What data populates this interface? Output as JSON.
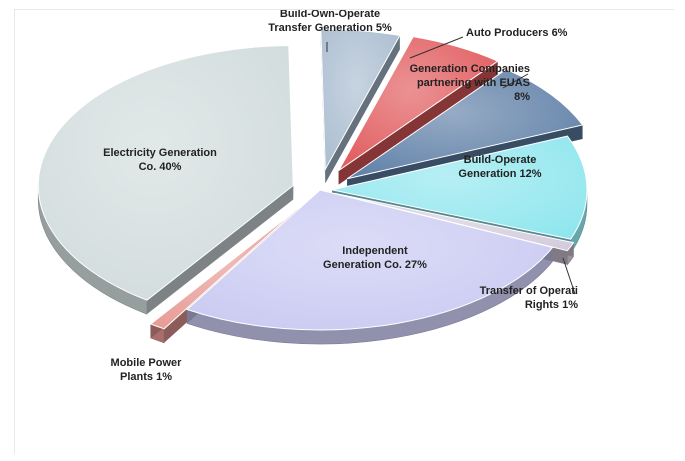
{
  "chart_data": {
    "type": "pie",
    "title": "",
    "slices": [
      {
        "key": "bot",
        "label_lines": [
          "Build-Own-Operate",
          "Transfer Generation 5%"
        ],
        "value": 5,
        "color": "#a9bccf"
      },
      {
        "key": "auto",
        "label_lines": [
          "Auto Producers 6%"
        ],
        "value": 6,
        "color": "#e0585a"
      },
      {
        "key": "gencos",
        "label_lines": [
          "Generation Companies",
          "partnering with EUAS",
          "8%"
        ],
        "value": 8,
        "color": "#5d7ea6"
      },
      {
        "key": "bo",
        "label_lines": [
          "Build-Operate",
          "Generation 12%"
        ],
        "value": 12,
        "color": "#8fe6ee"
      },
      {
        "key": "tor",
        "label_lines": [
          "Transfer of Operati",
          "Rights 1%"
        ],
        "value": 1,
        "color": "#d3ccdc"
      },
      {
        "key": "ipp",
        "label_lines": [
          "Independent",
          "Generation Co.  27%"
        ],
        "value": 27,
        "color": "#c9c9f2"
      },
      {
        "key": "mobile",
        "label_lines": [
          "Mobile Power",
          "Plants 1%"
        ],
        "value": 1,
        "color": "#e79a94"
      },
      {
        "key": "euas",
        "label_lines": [
          "Electricity Generation",
          "Co.  40%"
        ],
        "value": 40,
        "color": "#d1dbdc"
      }
    ],
    "legend": "none",
    "style": "3d-exploded"
  }
}
